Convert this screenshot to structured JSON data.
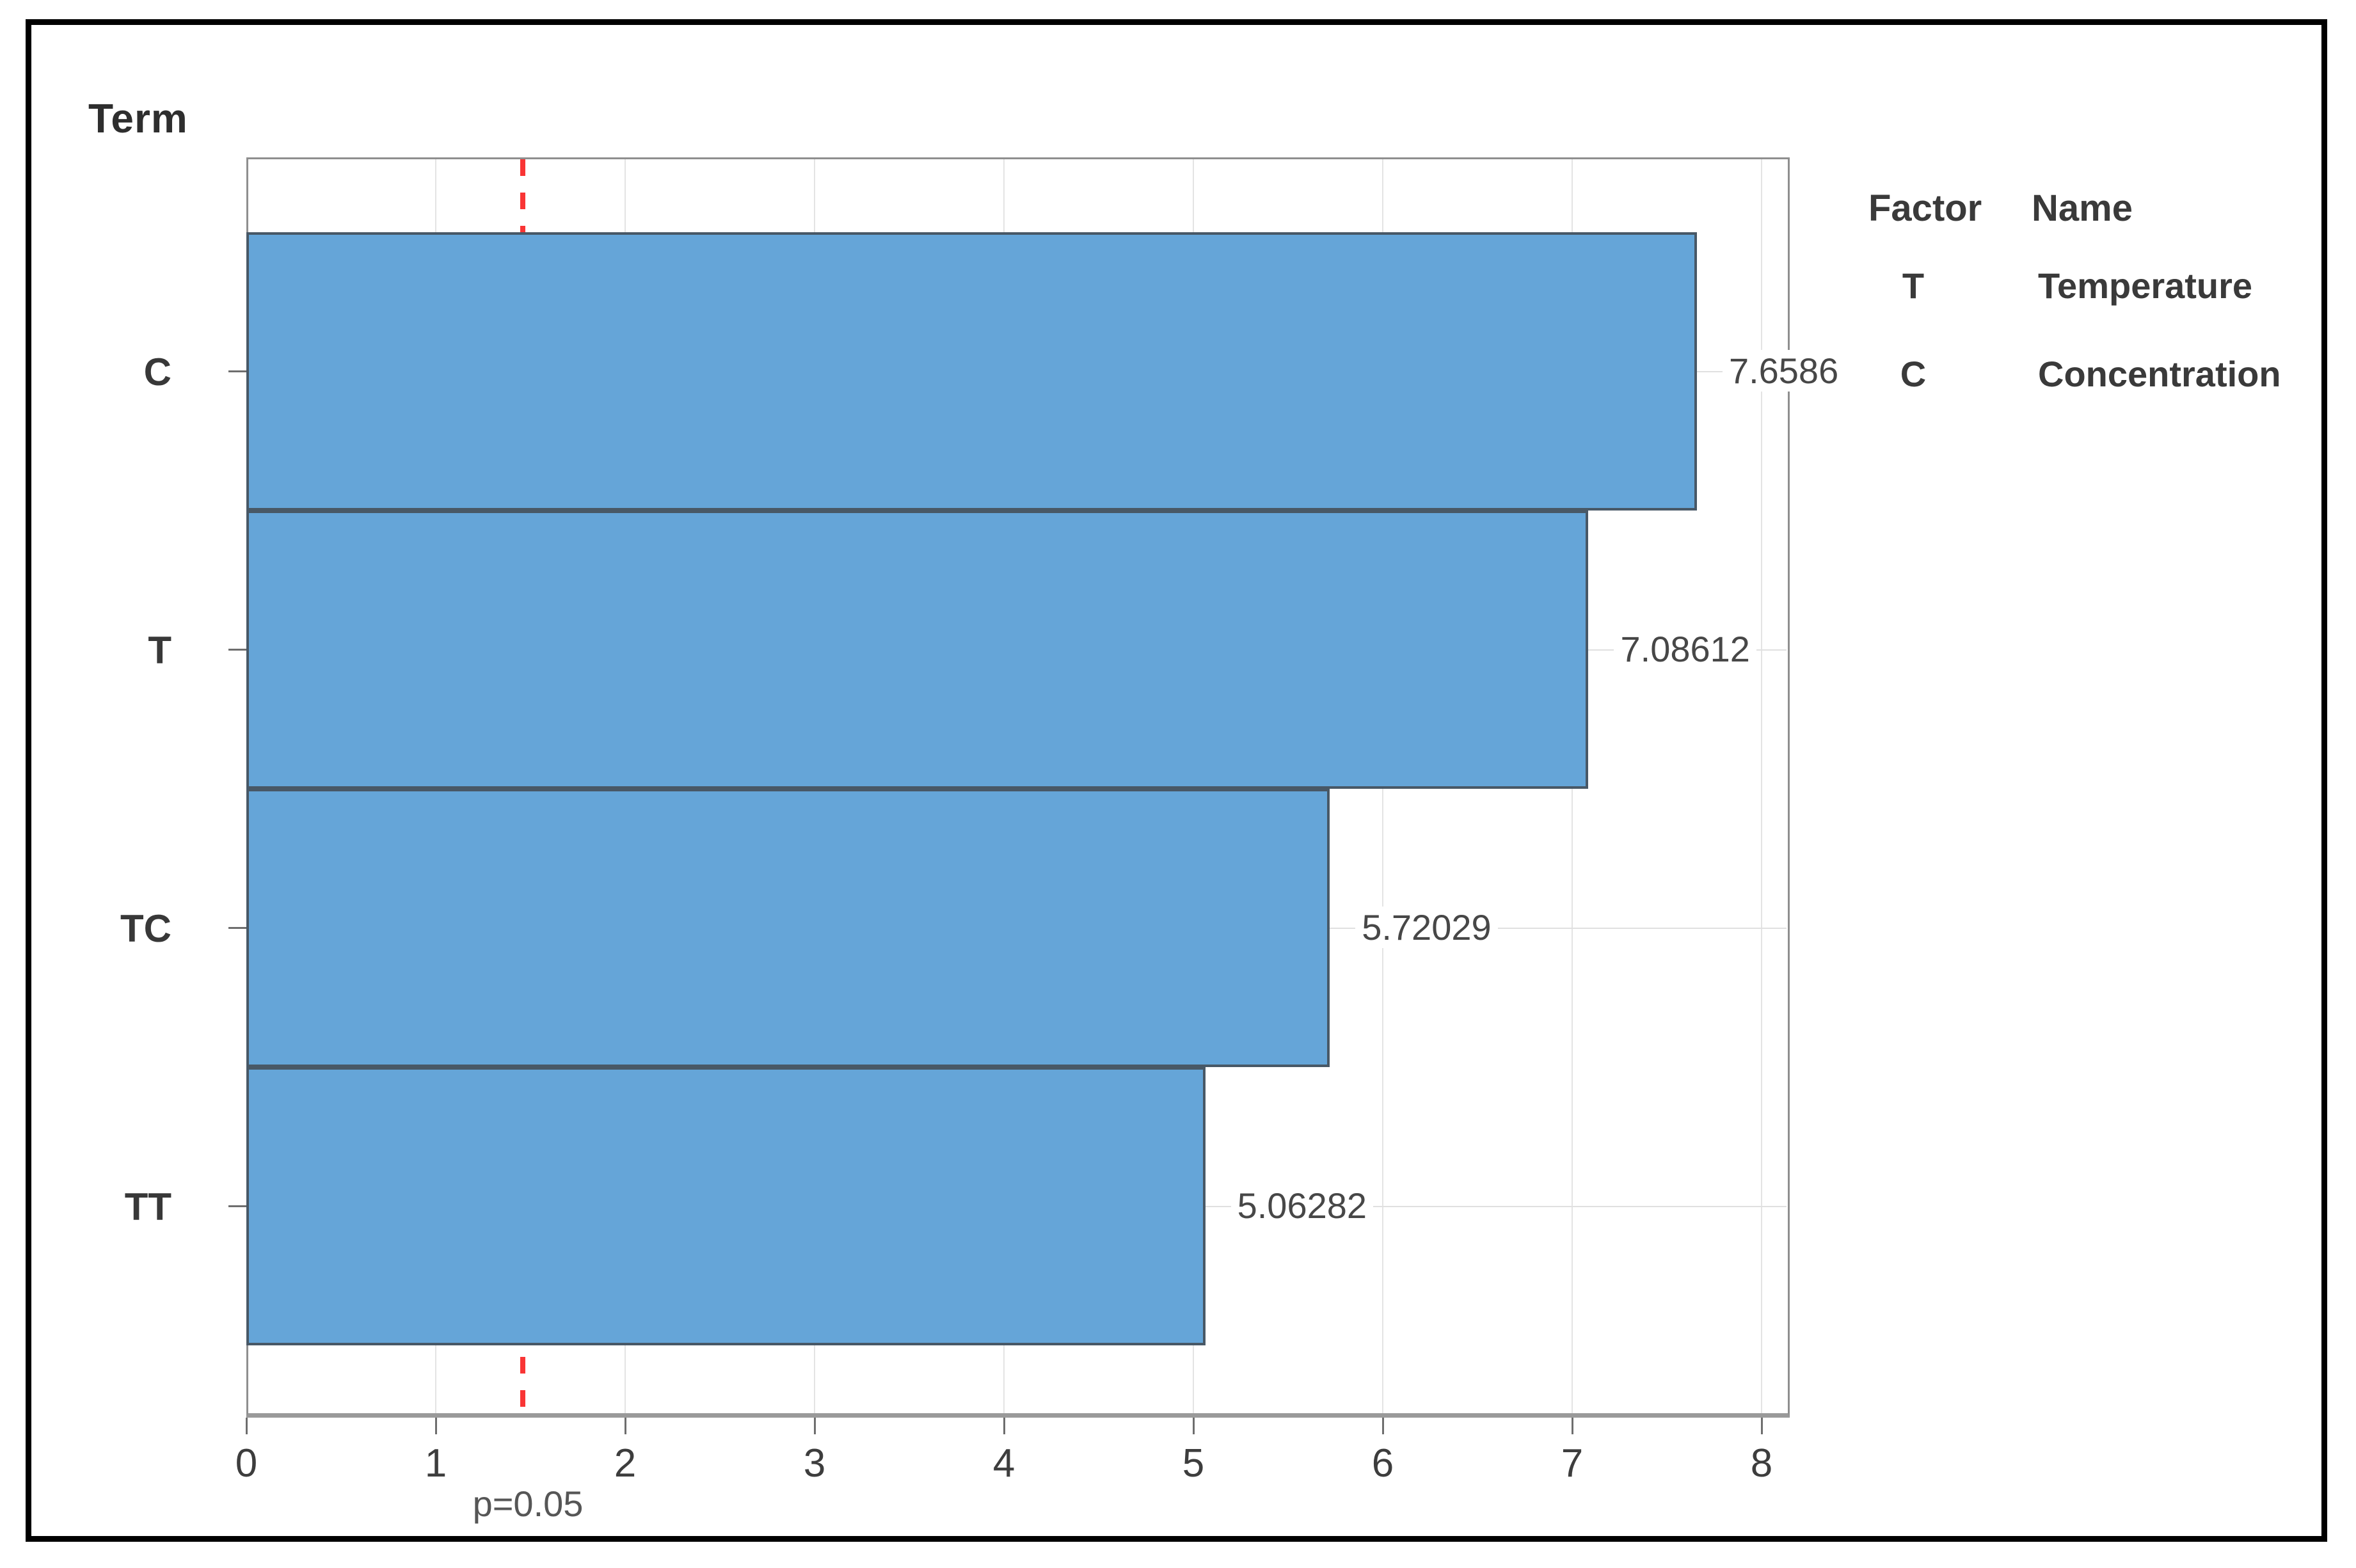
{
  "chart_data": {
    "type": "bar",
    "orientation": "horizontal",
    "title": "Term",
    "categories": [
      "C",
      "T",
      "TC",
      "TT"
    ],
    "values": [
      7.6586,
      7.08612,
      5.72029,
      5.06282
    ],
    "bar_labels": [
      "7.6586",
      "7.08612",
      "5.72029",
      "5.06282"
    ],
    "x_ticks": [
      "0",
      "1",
      "2",
      "3",
      "4",
      "5",
      "6",
      "7",
      "8"
    ],
    "xlim": [
      0,
      8.15
    ],
    "ylabel": "Term",
    "xlabel": "",
    "grid": true,
    "reference_line": {
      "x": 1.46,
      "label": "p=0.05",
      "style": "dashed"
    },
    "legend_position": "right",
    "legend": {
      "col_headers": [
        "Factor",
        "Name"
      ],
      "rows": [
        {
          "factor": "T",
          "name": "Temperature"
        },
        {
          "factor": "C",
          "name": "Concentration"
        }
      ]
    },
    "colors": {
      "bar_fill": "#65a5d8",
      "bar_border": "#485866",
      "reference_line": "#f93535",
      "gridline": "#e4e4e4",
      "frame": "#8f8f8f",
      "text": "#3d3d3d",
      "figure_border": "#000000",
      "background": "#ffffff"
    }
  }
}
